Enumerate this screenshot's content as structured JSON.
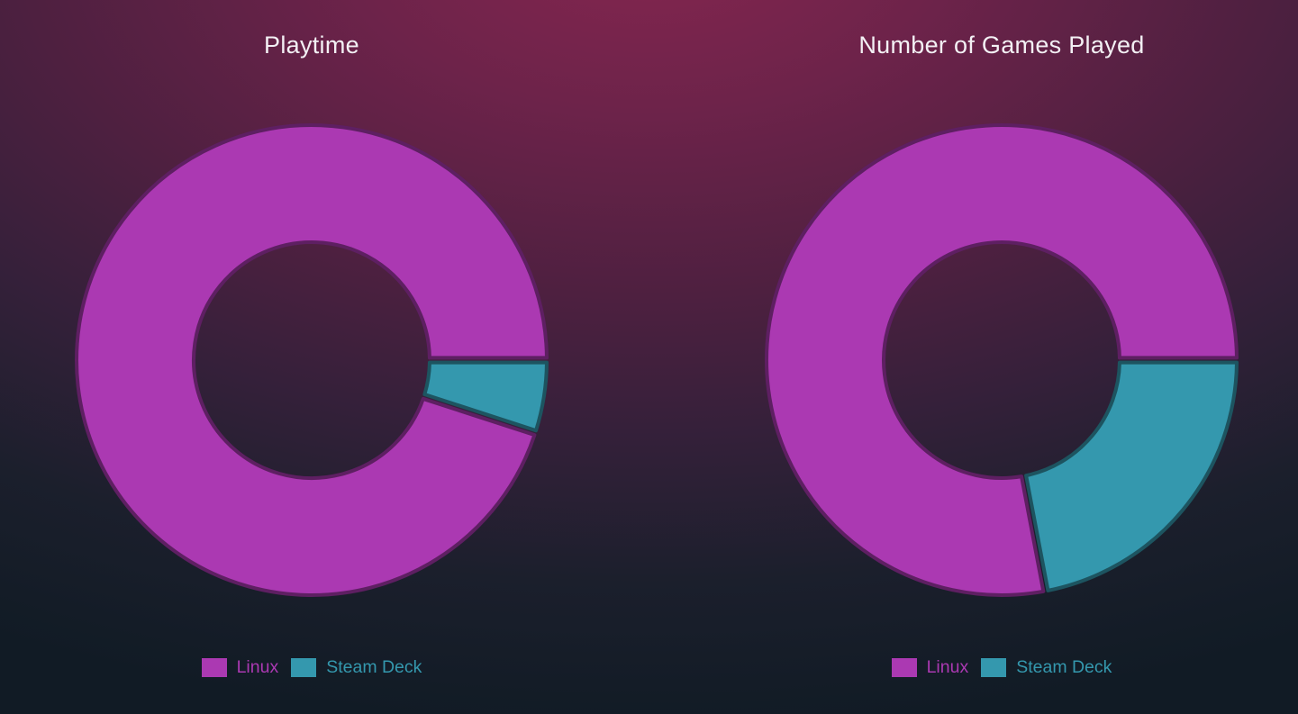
{
  "page": {
    "background_top_color": "#7c2450",
    "background_bottom_color": "#111b25"
  },
  "chart_data": [
    {
      "type": "pie",
      "subtype": "donut",
      "title": "Playtime",
      "labels": [
        "Linux",
        "Steam Deck"
      ],
      "values": [
        95,
        5
      ],
      "values_unit": "percent_of_total",
      "colors": [
        "#ab39b2",
        "#3498ae"
      ],
      "inner_radius_ratio": 0.5,
      "start_angle_deg": 0,
      "direction": "counterclockwise",
      "legend_position": "bottom",
      "legend_entries": [
        "Linux",
        "Steam Deck"
      ]
    },
    {
      "type": "pie",
      "subtype": "donut",
      "title": "Number of Games Played",
      "labels": [
        "Linux",
        "Steam Deck"
      ],
      "values": [
        78,
        22
      ],
      "values_unit": "percent_of_total",
      "colors": [
        "#ab39b2",
        "#3498ae"
      ],
      "inner_radius_ratio": 0.5,
      "start_angle_deg": 0,
      "direction": "counterclockwise",
      "legend_position": "bottom",
      "legend_entries": [
        "Linux",
        "Steam Deck"
      ]
    }
  ]
}
